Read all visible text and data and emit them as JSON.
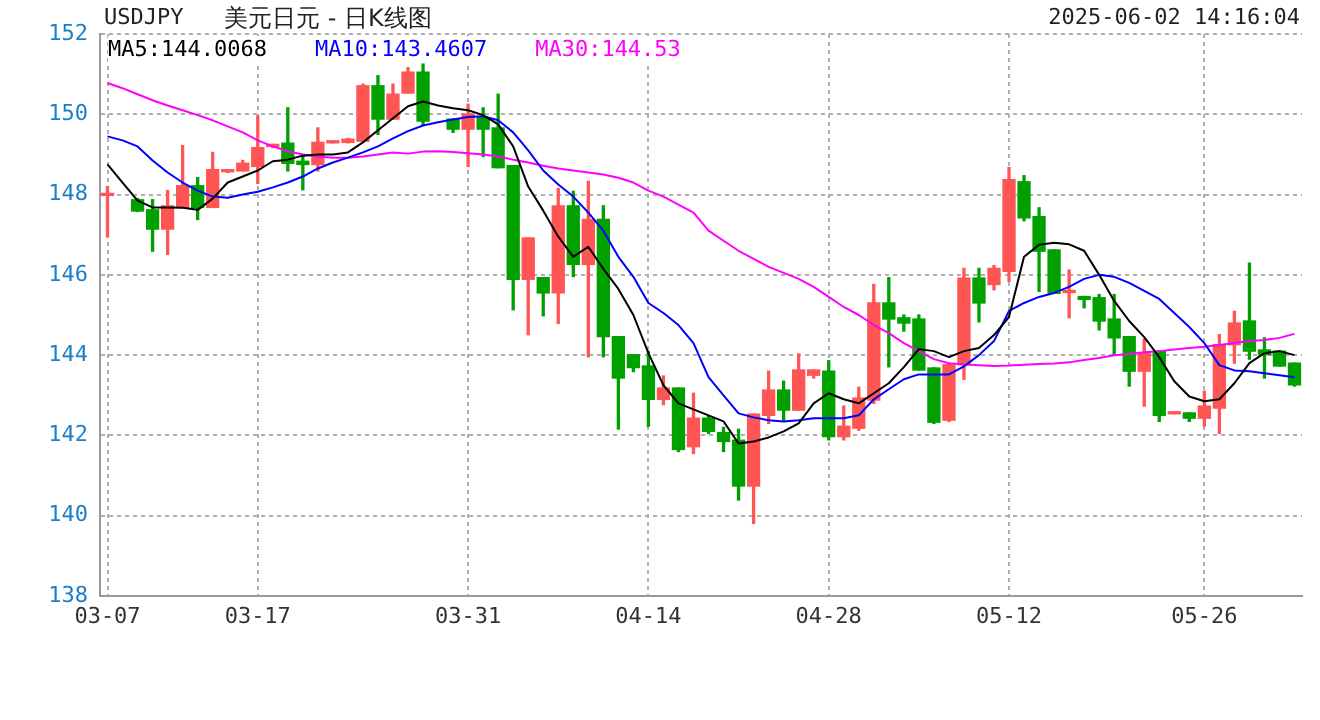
{
  "chart_data": {
    "type": "candlestick",
    "title": "美元日元 - 日K线图",
    "annotations": [
      "USDJPY",
      "2025-06-02 14:16:04"
    ],
    "categories": [
      "03-07",
      null,
      null,
      null,
      null,
      null,
      null,
      null,
      null,
      null,
      "03-17",
      null,
      null,
      null,
      null,
      null,
      null,
      null,
      null,
      null,
      null,
      null,
      null,
      null,
      "03-31",
      null,
      null,
      null,
      null,
      null,
      null,
      null,
      null,
      null,
      null,
      null,
      "04-14",
      null,
      null,
      null,
      null,
      null,
      null,
      null,
      null,
      null,
      null,
      null,
      "04-28",
      null,
      null,
      null,
      null,
      null,
      null,
      null,
      null,
      null,
      null,
      null,
      "05-12",
      null,
      null,
      null,
      null,
      null,
      null,
      null,
      null,
      null,
      null,
      null,
      null,
      "05-26",
      null,
      null,
      null,
      null,
      null,
      null
    ],
    "ohlc": [
      [
        147.98,
        148.2,
        146.95,
        148.0
      ],
      null,
      [
        147.87,
        147.9,
        147.58,
        147.59
      ],
      [
        147.62,
        147.87,
        146.59,
        147.14
      ],
      [
        147.14,
        148.1,
        146.51,
        147.72
      ],
      [
        147.68,
        149.22,
        147.68,
        148.22
      ],
      [
        148.22,
        148.42,
        147.38,
        147.68
      ],
      [
        147.68,
        149.05,
        147.68,
        148.62
      ],
      [
        148.57,
        148.6,
        148.55,
        148.59
      ],
      [
        148.59,
        148.85,
        148.59,
        148.78
      ],
      [
        148.7,
        149.96,
        148.28,
        149.17
      ],
      [
        149.2,
        149.25,
        149.17,
        149.25
      ],
      [
        149.28,
        150.16,
        148.59,
        148.78
      ],
      [
        148.83,
        149.0,
        148.12,
        148.75
      ],
      [
        148.75,
        149.66,
        148.59,
        149.3
      ],
      [
        149.29,
        149.31,
        149.29,
        149.31
      ],
      [
        149.3,
        149.4,
        149.29,
        149.38
      ],
      [
        149.33,
        150.75,
        149.33,
        150.71
      ],
      [
        150.71,
        150.96,
        149.5,
        149.88
      ],
      [
        149.88,
        150.75,
        149.88,
        150.5
      ],
      [
        150.53,
        151.16,
        150.53,
        151.05
      ],
      [
        151.05,
        151.25,
        149.75,
        149.83
      ],
      null,
      [
        149.88,
        149.88,
        149.55,
        149.63
      ],
      [
        149.63,
        150.25,
        148.7,
        150.0
      ],
      [
        149.92,
        150.16,
        148.95,
        149.63
      ],
      [
        149.66,
        150.5,
        148.67,
        148.67
      ],
      [
        148.72,
        148.72,
        145.13,
        145.89
      ],
      [
        145.89,
        146.92,
        144.51,
        146.92
      ],
      [
        145.93,
        145.93,
        144.98,
        145.55
      ],
      [
        145.55,
        148.15,
        144.79,
        147.72
      ],
      [
        147.72,
        148.08,
        145.96,
        146.26
      ],
      [
        146.26,
        148.33,
        143.96,
        147.38
      ],
      [
        147.38,
        147.72,
        143.96,
        144.46
      ],
      [
        144.46,
        144.46,
        142.16,
        143.43
      ],
      [
        144.01,
        144.01,
        143.59,
        143.69
      ],
      [
        143.73,
        144.09,
        142.23,
        142.9
      ],
      [
        142.9,
        143.48,
        142.77,
        143.18
      ],
      [
        143.18,
        143.18,
        141.6,
        141.65
      ],
      [
        141.72,
        143.05,
        141.55,
        142.43
      ],
      [
        142.43,
        142.48,
        142.05,
        142.1
      ],
      [
        142.07,
        142.2,
        141.6,
        141.85
      ],
      [
        141.88,
        142.15,
        140.39,
        140.74
      ],
      [
        140.74,
        142.53,
        139.81,
        142.53
      ],
      [
        142.5,
        143.6,
        142.3,
        143.13
      ],
      [
        143.13,
        143.35,
        142.35,
        142.63
      ],
      [
        142.63,
        144.03,
        142.63,
        143.63
      ],
      [
        143.5,
        143.63,
        143.43,
        143.63
      ],
      [
        143.6,
        143.86,
        141.89,
        141.97
      ],
      [
        141.97,
        142.73,
        141.89,
        142.23
      ],
      [
        142.18,
        143.2,
        142.13,
        142.93
      ],
      [
        142.88,
        145.76,
        142.8,
        145.3
      ],
      [
        145.3,
        145.93,
        143.71,
        144.9
      ],
      [
        144.93,
        145.0,
        144.6,
        144.8
      ],
      [
        144.9,
        145.0,
        143.63,
        143.63
      ],
      [
        143.68,
        143.68,
        142.3,
        142.33
      ],
      [
        142.38,
        143.76,
        142.35,
        143.76
      ],
      [
        143.76,
        146.16,
        143.4,
        145.92
      ],
      [
        145.92,
        146.16,
        144.83,
        145.3
      ],
      [
        145.76,
        146.23,
        145.63,
        146.16
      ],
      [
        146.09,
        148.67,
        145.84,
        148.37
      ],
      [
        148.32,
        148.47,
        147.35,
        147.42
      ],
      [
        147.45,
        147.67,
        145.59,
        146.59
      ],
      [
        146.62,
        146.62,
        145.54,
        145.54
      ],
      [
        145.56,
        146.12,
        144.93,
        145.58
      ],
      [
        145.46,
        145.46,
        145.18,
        145.39
      ],
      [
        145.43,
        145.51,
        144.63,
        144.85
      ],
      [
        144.9,
        145.51,
        144.01,
        144.43
      ],
      [
        144.46,
        144.46,
        143.23,
        143.6
      ],
      [
        143.6,
        144.4,
        142.73,
        144.06
      ],
      [
        144.1,
        144.1,
        142.35,
        142.5
      ],
      [
        142.54,
        142.56,
        142.54,
        142.56
      ],
      [
        142.56,
        142.56,
        142.35,
        142.43
      ],
      [
        142.43,
        143.1,
        142.23,
        142.73
      ],
      [
        142.68,
        144.51,
        142.05,
        144.26
      ],
      [
        144.26,
        145.09,
        143.8,
        144.8
      ],
      [
        144.85,
        146.29,
        143.9,
        144.1
      ],
      [
        144.13,
        144.43,
        143.43,
        144.01
      ],
      [
        144.1,
        144.1,
        143.73,
        143.73
      ],
      [
        143.8,
        143.8,
        143.23,
        143.26
      ]
    ],
    "colors": [
      "#ff5555",
      null,
      "#00a000",
      "#00a000",
      "#ff5555",
      "#ff5555",
      "#00a000",
      "#ff5555",
      "#ff5555",
      "#ff5555",
      "#ff5555",
      "#ff5555",
      "#00a000",
      "#00a000",
      "#ff5555",
      "#ff5555",
      "#ff5555",
      "#ff5555",
      "#00a000",
      "#ff5555",
      "#ff5555",
      "#00a000",
      null,
      "#00a000",
      "#ff5555",
      "#00a000",
      "#00a000",
      "#00a000",
      "#ff5555",
      "#00a000",
      "#ff5555",
      "#00a000",
      "#ff5555",
      "#00a000",
      "#00a000",
      "#00a000",
      "#00a000",
      "#ff5555",
      "#00a000",
      "#ff5555",
      "#00a000",
      "#00a000",
      "#00a000",
      "#ff5555",
      "#ff5555",
      "#00a000",
      "#ff5555",
      "#ff5555",
      "#00a000",
      "#ff5555",
      "#ff5555",
      "#ff5555",
      "#00a000",
      "#00a000",
      "#00a000",
      "#00a000",
      "#ff5555",
      "#ff5555",
      "#00a000",
      "#ff5555",
      "#ff5555",
      "#00a000",
      "#00a000",
      "#00a000",
      "#ff5555",
      "#00a000",
      "#00a000",
      "#00a000",
      "#00a000",
      "#ff5555",
      "#00a000",
      "#ff5555",
      "#00a000",
      "#ff5555",
      "#ff5555",
      "#ff5555",
      "#00a000",
      "#00a000",
      "#00a000",
      "#00a000"
    ],
    "series": [
      {
        "type": "line",
        "name": "MA5:144.0068",
        "color": "#000000",
        "values": [
          148.75,
          148.3,
          147.85,
          147.68,
          147.68,
          147.67,
          147.62,
          147.9,
          148.3,
          148.45,
          148.6,
          148.83,
          148.87,
          148.97,
          149.0,
          149.0,
          149.05,
          149.3,
          149.6,
          149.9,
          150.2,
          150.32,
          150.22,
          150.15,
          150.1,
          149.98,
          149.75,
          149.2,
          148.2,
          147.6,
          146.95,
          146.45,
          146.7,
          146.15,
          145.65,
          145.0,
          144.05,
          143.25,
          142.8,
          142.65,
          142.5,
          142.35,
          141.8,
          141.85,
          141.95,
          142.1,
          142.3,
          142.8,
          143.05,
          142.9,
          142.8,
          143.05,
          143.3,
          143.7,
          144.15,
          144.1,
          143.95,
          144.1,
          144.18,
          144.5,
          144.95,
          146.45,
          146.75,
          146.8,
          146.76,
          146.6,
          146.0,
          145.35,
          144.85,
          144.45,
          143.95,
          143.35,
          142.97,
          142.85,
          142.9,
          143.3,
          143.8,
          144.05,
          144.1,
          144.0
        ]
      },
      {
        "type": "line",
        "name": "MA10:143.4607",
        "color": "#0000ff",
        "values": [
          149.45,
          149.35,
          149.2,
          148.85,
          148.55,
          148.3,
          148.1,
          147.95,
          147.92,
          148.0,
          148.07,
          148.18,
          148.3,
          148.45,
          148.65,
          148.8,
          148.92,
          149.05,
          149.2,
          149.4,
          149.58,
          149.72,
          149.8,
          149.87,
          149.93,
          149.95,
          149.85,
          149.55,
          149.1,
          148.6,
          148.25,
          147.95,
          147.55,
          147.1,
          146.45,
          145.95,
          145.3,
          145.05,
          144.75,
          144.3,
          143.45,
          143.0,
          142.55,
          142.45,
          142.38,
          142.35,
          142.38,
          142.43,
          142.43,
          142.43,
          142.5,
          142.9,
          143.15,
          143.4,
          143.52,
          143.52,
          143.52,
          143.72,
          144.0,
          144.35,
          145.1,
          145.3,
          145.45,
          145.55,
          145.7,
          145.9,
          146.0,
          145.95,
          145.8,
          145.6,
          145.4,
          145.05,
          144.7,
          144.3,
          143.75,
          143.62,
          143.6,
          143.55,
          143.5,
          143.45
        ]
      },
      {
        "type": "line",
        "name": "MA30:144.53",
        "color": "#ff00ff",
        "values": [
          150.78,
          150.65,
          150.5,
          150.35,
          150.22,
          150.1,
          149.98,
          149.85,
          149.7,
          149.55,
          149.35,
          149.2,
          149.08,
          149.0,
          148.95,
          148.92,
          148.92,
          148.95,
          149.0,
          149.05,
          149.02,
          149.07,
          149.08,
          149.06,
          149.03,
          149.0,
          148.95,
          148.87,
          148.8,
          148.72,
          148.65,
          148.6,
          148.55,
          148.5,
          148.42,
          148.3,
          148.1,
          147.95,
          147.75,
          147.55,
          147.1,
          146.85,
          146.6,
          146.4,
          146.2,
          146.05,
          145.9,
          145.7,
          145.45,
          145.2,
          145.0,
          144.75,
          144.55,
          144.3,
          144.1,
          143.9,
          143.8,
          143.77,
          143.75,
          143.73,
          143.74,
          143.76,
          143.78,
          143.79,
          143.82,
          143.88,
          143.93,
          144.0,
          144.03,
          144.07,
          144.1,
          144.14,
          144.18,
          144.21,
          144.25,
          144.3,
          144.35,
          144.38,
          144.43,
          144.53
        ]
      }
    ],
    "ylim": [
      138,
      152
    ],
    "yticks": [
      138,
      140,
      142,
      144,
      146,
      148,
      150,
      152
    ],
    "grid": true,
    "legend": "top left",
    "marker": "none"
  }
}
